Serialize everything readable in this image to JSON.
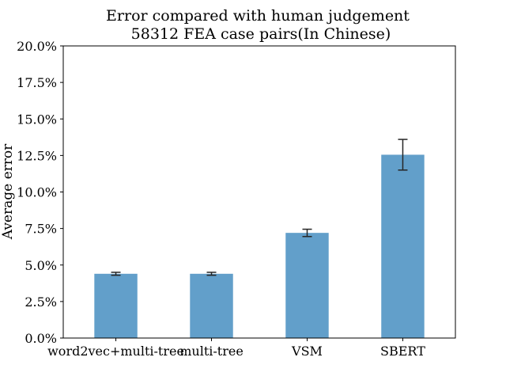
{
  "chart_data": {
    "type": "bar",
    "title": "Error compared with human judgement",
    "subtitle": "58312 FEA case pairs(In Chinese)",
    "xlabel": "",
    "ylabel": "Average error",
    "categories": [
      "word2vec+multi-tree",
      "multi-tree",
      "VSM",
      "SBERT"
    ],
    "values": [
      4.4,
      4.4,
      7.2,
      12.55
    ],
    "errors": [
      0.1,
      0.1,
      0.25,
      1.05
    ],
    "ylim": [
      0,
      20
    ],
    "yticks": [
      0,
      2.5,
      5,
      7.5,
      10,
      12.5,
      15,
      17.5,
      20
    ],
    "ytick_labels": [
      "0.0%",
      "2.5%",
      "5.0%",
      "7.5%",
      "10.0%",
      "12.5%",
      "15.0%",
      "17.5%",
      "20.0%"
    ],
    "bar_color": "#629fca",
    "errorbar_color": "#262626",
    "grid": false,
    "legend": false
  }
}
